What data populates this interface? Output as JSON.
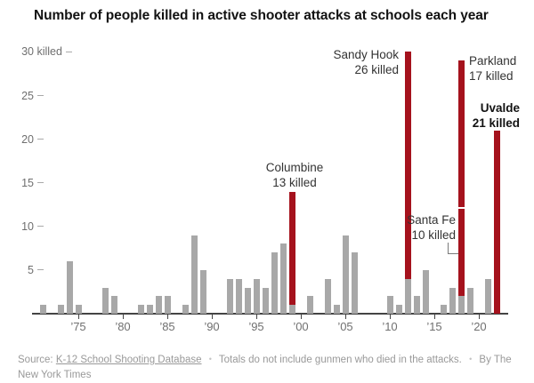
{
  "title": "Number of people killed in active shooter attacks at schools each year",
  "colors": {
    "bar_gray": "#a8a8a8",
    "bar_red": "#a5121d",
    "axis": "#444444",
    "tick_label": "#707070",
    "annotation_text": "#333333",
    "title_text": "#121212",
    "footer_text": "#999999"
  },
  "y_axis": {
    "ticks": [
      {
        "value": 30,
        "number": "30",
        "suffix": " killed"
      },
      {
        "value": 25,
        "number": "25",
        "suffix": ""
      },
      {
        "value": 20,
        "number": "20",
        "suffix": ""
      },
      {
        "value": 15,
        "number": "15",
        "suffix": ""
      },
      {
        "value": 10,
        "number": "10",
        "suffix": ""
      },
      {
        "value": 5,
        "number": "5",
        "suffix": ""
      }
    ]
  },
  "x_axis": {
    "ticks": [
      {
        "year": 1975,
        "label": "’75"
      },
      {
        "year": 1980,
        "label": "’80"
      },
      {
        "year": 1985,
        "label": "’85"
      },
      {
        "year": 1990,
        "label": "’90"
      },
      {
        "year": 1995,
        "label": "’95"
      },
      {
        "year": 2000,
        "label": "’00"
      },
      {
        "year": 2005,
        "label": "’05"
      },
      {
        "year": 2010,
        "label": "’10"
      },
      {
        "year": 2015,
        "label": "’15"
      },
      {
        "year": 2020,
        "label": "’20"
      }
    ]
  },
  "chart_data": {
    "type": "bar",
    "title": "Number of people killed in active shooter attacks at schools each year",
    "xlabel": "year",
    "ylabel": "people killed",
    "x_range": [
      1970,
      2022
    ],
    "ylim": [
      0,
      31
    ],
    "grid": false,
    "legend": "none",
    "bars": [
      {
        "year": 1971,
        "total": 1,
        "segments": [
          {
            "value": 1,
            "color": "gray"
          }
        ]
      },
      {
        "year": 1973,
        "total": 1,
        "segments": [
          {
            "value": 1,
            "color": "gray"
          }
        ]
      },
      {
        "year": 1974,
        "total": 6,
        "segments": [
          {
            "value": 6,
            "color": "gray"
          }
        ]
      },
      {
        "year": 1975,
        "total": 1,
        "segments": [
          {
            "value": 1,
            "color": "gray"
          }
        ]
      },
      {
        "year": 1978,
        "total": 3,
        "segments": [
          {
            "value": 3,
            "color": "gray"
          }
        ]
      },
      {
        "year": 1979,
        "total": 2,
        "segments": [
          {
            "value": 2,
            "color": "gray"
          }
        ]
      },
      {
        "year": 1982,
        "total": 1,
        "segments": [
          {
            "value": 1,
            "color": "gray"
          }
        ]
      },
      {
        "year": 1983,
        "total": 1,
        "segments": [
          {
            "value": 1,
            "color": "gray"
          }
        ]
      },
      {
        "year": 1984,
        "total": 2,
        "segments": [
          {
            "value": 2,
            "color": "gray"
          }
        ]
      },
      {
        "year": 1985,
        "total": 2,
        "segments": [
          {
            "value": 2,
            "color": "gray"
          }
        ]
      },
      {
        "year": 1987,
        "total": 1,
        "segments": [
          {
            "value": 1,
            "color": "gray"
          }
        ]
      },
      {
        "year": 1988,
        "total": 9,
        "segments": [
          {
            "value": 9,
            "color": "gray"
          }
        ]
      },
      {
        "year": 1989,
        "total": 5,
        "segments": [
          {
            "value": 5,
            "color": "gray"
          }
        ]
      },
      {
        "year": 1992,
        "total": 4,
        "segments": [
          {
            "value": 4,
            "color": "gray"
          }
        ]
      },
      {
        "year": 1993,
        "total": 4,
        "segments": [
          {
            "value": 4,
            "color": "gray"
          }
        ]
      },
      {
        "year": 1994,
        "total": 3,
        "segments": [
          {
            "value": 3,
            "color": "gray"
          }
        ]
      },
      {
        "year": 1995,
        "total": 4,
        "segments": [
          {
            "value": 4,
            "color": "gray"
          }
        ]
      },
      {
        "year": 1996,
        "total": 3,
        "segments": [
          {
            "value": 3,
            "color": "gray"
          }
        ]
      },
      {
        "year": 1997,
        "total": 7,
        "segments": [
          {
            "value": 7,
            "color": "gray"
          }
        ]
      },
      {
        "year": 1998,
        "total": 8,
        "segments": [
          {
            "value": 8,
            "color": "gray"
          }
        ]
      },
      {
        "year": 1999,
        "total": 14,
        "segments": [
          {
            "value": 1,
            "color": "gray"
          },
          {
            "value": 13,
            "color": "red",
            "event": "Columbine"
          }
        ]
      },
      {
        "year": 2001,
        "total": 2,
        "segments": [
          {
            "value": 2,
            "color": "gray"
          }
        ]
      },
      {
        "year": 2003,
        "total": 4,
        "segments": [
          {
            "value": 4,
            "color": "gray"
          }
        ]
      },
      {
        "year": 2004,
        "total": 1,
        "segments": [
          {
            "value": 1,
            "color": "gray"
          }
        ]
      },
      {
        "year": 2005,
        "total": 9,
        "segments": [
          {
            "value": 9,
            "color": "gray"
          }
        ]
      },
      {
        "year": 2006,
        "total": 7,
        "segments": [
          {
            "value": 7,
            "color": "gray"
          }
        ]
      },
      {
        "year": 2010,
        "total": 2,
        "segments": [
          {
            "value": 2,
            "color": "gray"
          }
        ]
      },
      {
        "year": 2011,
        "total": 1,
        "segments": [
          {
            "value": 1,
            "color": "gray"
          }
        ]
      },
      {
        "year": 2012,
        "total": 30,
        "segments": [
          {
            "value": 4,
            "color": "gray"
          },
          {
            "value": 26,
            "color": "red",
            "event": "Sandy Hook"
          }
        ]
      },
      {
        "year": 2013,
        "total": 2,
        "segments": [
          {
            "value": 2,
            "color": "gray"
          }
        ]
      },
      {
        "year": 2014,
        "total": 5,
        "segments": [
          {
            "value": 5,
            "color": "gray"
          }
        ]
      },
      {
        "year": 2016,
        "total": 1,
        "segments": [
          {
            "value": 1,
            "color": "gray"
          }
        ]
      },
      {
        "year": 2017,
        "total": 3,
        "segments": [
          {
            "value": 3,
            "color": "gray"
          }
        ]
      },
      {
        "year": 2018,
        "total": 29,
        "segments": [
          {
            "value": 2,
            "color": "gray"
          },
          {
            "value": 10,
            "color": "red",
            "event": "Santa Fe"
          },
          {
            "value": 17,
            "color": "red",
            "event": "Parkland",
            "gap_below": true
          }
        ]
      },
      {
        "year": 2019,
        "total": 3,
        "segments": [
          {
            "value": 3,
            "color": "gray"
          }
        ]
      },
      {
        "year": 2021,
        "total": 4,
        "segments": [
          {
            "value": 4,
            "color": "gray"
          }
        ]
      },
      {
        "year": 2022,
        "total": 21,
        "segments": [
          {
            "value": 21,
            "color": "red",
            "event": "Uvalde"
          }
        ]
      }
    ]
  },
  "annotations": [
    {
      "id": "sandy_hook",
      "lines": [
        "Sandy Hook",
        "26 killed"
      ],
      "bold": false
    },
    {
      "id": "parkland",
      "lines": [
        "Parkland",
        "17 killed"
      ],
      "bold": false
    },
    {
      "id": "uvalde",
      "lines": [
        "Uvalde",
        "21 killed"
      ],
      "bold": true
    },
    {
      "id": "columbine",
      "lines": [
        "Columbine",
        "13 killed"
      ],
      "bold": false
    },
    {
      "id": "santa_fe",
      "lines": [
        "Santa Fe",
        "10 killed"
      ],
      "bold": false
    }
  ],
  "footer": {
    "source_prefix": "Source:",
    "source_link": "K-12 School Shooting Database",
    "separator": "•",
    "note": "Totals do not include gunmen who died in the attacks.",
    "byline": "By The New York Times"
  }
}
